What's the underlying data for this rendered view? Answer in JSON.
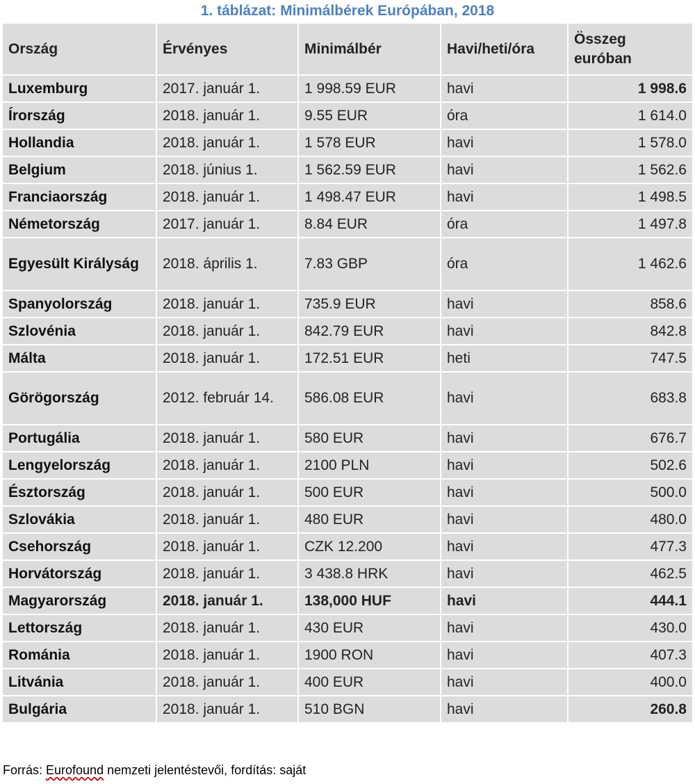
{
  "title": "1. táblázat: Minimálbérek Európában, 2018",
  "colors": {
    "title": "#4f81bd",
    "green": "#92d050",
    "blue": "#00b0f0",
    "red": "#ff0000",
    "cell": "#dcdcdc"
  },
  "headers": [
    "Ország",
    "Érvényes",
    "Minimálbér",
    "Havi/heti/óra",
    "Összeg euróban"
  ],
  "rows": [
    {
      "country": "Luxemburg",
      "valid": "2017. január 1.",
      "wage": "1 998.59 EUR",
      "period": "havi",
      "eur": "1 998.6",
      "group": "green",
      "boldAmount": true
    },
    {
      "country": "Írország",
      "valid": "2018. január 1.",
      "wage": "9.55 EUR",
      "period": "óra",
      "eur": "1 614.0",
      "group": "green"
    },
    {
      "country": "Hollandia",
      "valid": "2018. január 1.",
      "wage": "1 578 EUR",
      "period": "havi",
      "eur": "1 578.0",
      "group": "green"
    },
    {
      "country": "Belgium",
      "valid": "2018. június 1.",
      "wage": "1 562.59 EUR",
      "period": "havi",
      "eur": "1 562.6",
      "group": "green"
    },
    {
      "country": "Franciaország",
      "valid": "2018. január 1.",
      "wage": "1 498.47 EUR",
      "period": "havi",
      "eur": "1 498.5",
      "group": "green"
    },
    {
      "country": "Németország",
      "valid": "2017. január 1.",
      "wage": "8.84 EUR",
      "period": "óra",
      "eur": "1 497.8",
      "group": "green"
    },
    {
      "country": "Egyesült Királyság",
      "valid": "2018. április 1.",
      "wage": "7.83 GBP",
      "period": "óra",
      "eur": "1 462.6",
      "group": "green",
      "tall": true
    },
    {
      "country": "Spanyolország",
      "valid": "2018. január 1.",
      "wage": "735.9 EUR",
      "period": "havi",
      "eur": "858.6",
      "group": "blue"
    },
    {
      "country": "Szlovénia",
      "valid": "2018. január 1.",
      "wage": "842.79 EUR",
      "period": "havi",
      "eur": "842.8",
      "group": "blue"
    },
    {
      "country": "Málta",
      "valid": "2018. január 1.",
      "wage": "172.51 EUR",
      "period": "heti",
      "eur": "747.5",
      "group": "blue"
    },
    {
      "country": "Görögország",
      "valid": "2012. február 14.",
      "wage": "586.08 EUR",
      "period": "havi",
      "eur": "683.8",
      "group": "blue",
      "tall": true
    },
    {
      "country": "Portugália",
      "valid": "2018. január 1.",
      "wage": "580 EUR",
      "period": "havi",
      "eur": "676.7",
      "group": "blue"
    },
    {
      "country": "Lengyelország",
      "valid": "2018. január 1.",
      "wage": "2100 PLN",
      "period": "havi",
      "eur": "502.6",
      "group": "red"
    },
    {
      "country": "Észtország",
      "valid": "2018. január 1.",
      "wage": "500 EUR",
      "period": "havi",
      "eur": "500.0",
      "group": "red"
    },
    {
      "country": "Szlovákia",
      "valid": "2018. január 1.",
      "wage": "480 EUR",
      "period": "havi",
      "eur": "480.0",
      "group": "red"
    },
    {
      "country": "Csehország",
      "valid": "2018. január 1.",
      "wage": "CZK 12.200",
      "period": "havi",
      "eur": "477.3",
      "group": "red"
    },
    {
      "country": "Horvátország",
      "valid": "2018. január 1.",
      "wage": "3 438.8 HRK",
      "period": "havi",
      "eur": "462.5",
      "group": "red"
    },
    {
      "country": "Magyarország",
      "valid": "2018. január 1.",
      "wage": "138,000 HUF",
      "period": "havi",
      "eur": "444.1",
      "group": "red",
      "bold": true
    },
    {
      "country": "Lettország",
      "valid": "2018. január 1.",
      "wage": "430 EUR",
      "period": "havi",
      "eur": "430.0",
      "group": "red"
    },
    {
      "country": "Románia",
      "valid": "2018. január 1.",
      "wage": "1900 RON",
      "period": "havi",
      "eur": "407.3",
      "group": "red"
    },
    {
      "country": "Litvánia",
      "valid": "2018. január 1.",
      "wage": "400 EUR",
      "period": "havi",
      "eur": "400.0",
      "group": "red"
    },
    {
      "country": "Bulgária",
      "valid": "2018. január 1.",
      "wage": "510 BGN",
      "period": "havi",
      "eur": "260.8",
      "group": "red",
      "boldAmount": true
    }
  ],
  "source": {
    "prefix": "Forrás: ",
    "underlined": "Eurofound",
    "suffix": " nemzeti jelentéstevői, fordítás: saját"
  }
}
